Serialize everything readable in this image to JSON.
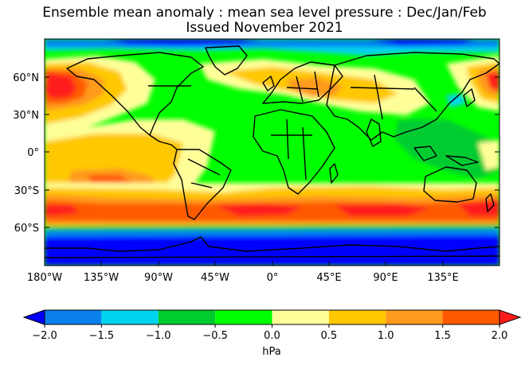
{
  "title": "Ensemble mean anomaly : mean sea level pressure : Dec/Jan/Feb",
  "subtitle": "Issued November 2021",
  "lat_ticks": [
    "60°N",
    "30°N",
    "0°",
    "30°S",
    "60°S"
  ],
  "lon_ticks": [
    "180°W",
    "135°W",
    "90°W",
    "45°W",
    "0°",
    "45°E",
    "90°E",
    "135°E"
  ],
  "colorbar": {
    "unit": "hPa",
    "tick_labels": [
      "−2.0",
      "−1.5",
      "−1.0",
      "−0.5",
      "0.0",
      "0.5",
      "1.0",
      "1.5",
      "2.0"
    ],
    "colors": [
      "#0000ff",
      "#0a80ef",
      "#00d4ee",
      "#00cc30",
      "#00ff00",
      "#ffff99",
      "#ffc800",
      "#ff9a1e",
      "#ff5a00",
      "#ff1a1a"
    ]
  },
  "colors": {
    "land_outline": "#000000",
    "frame": "#000000"
  }
}
